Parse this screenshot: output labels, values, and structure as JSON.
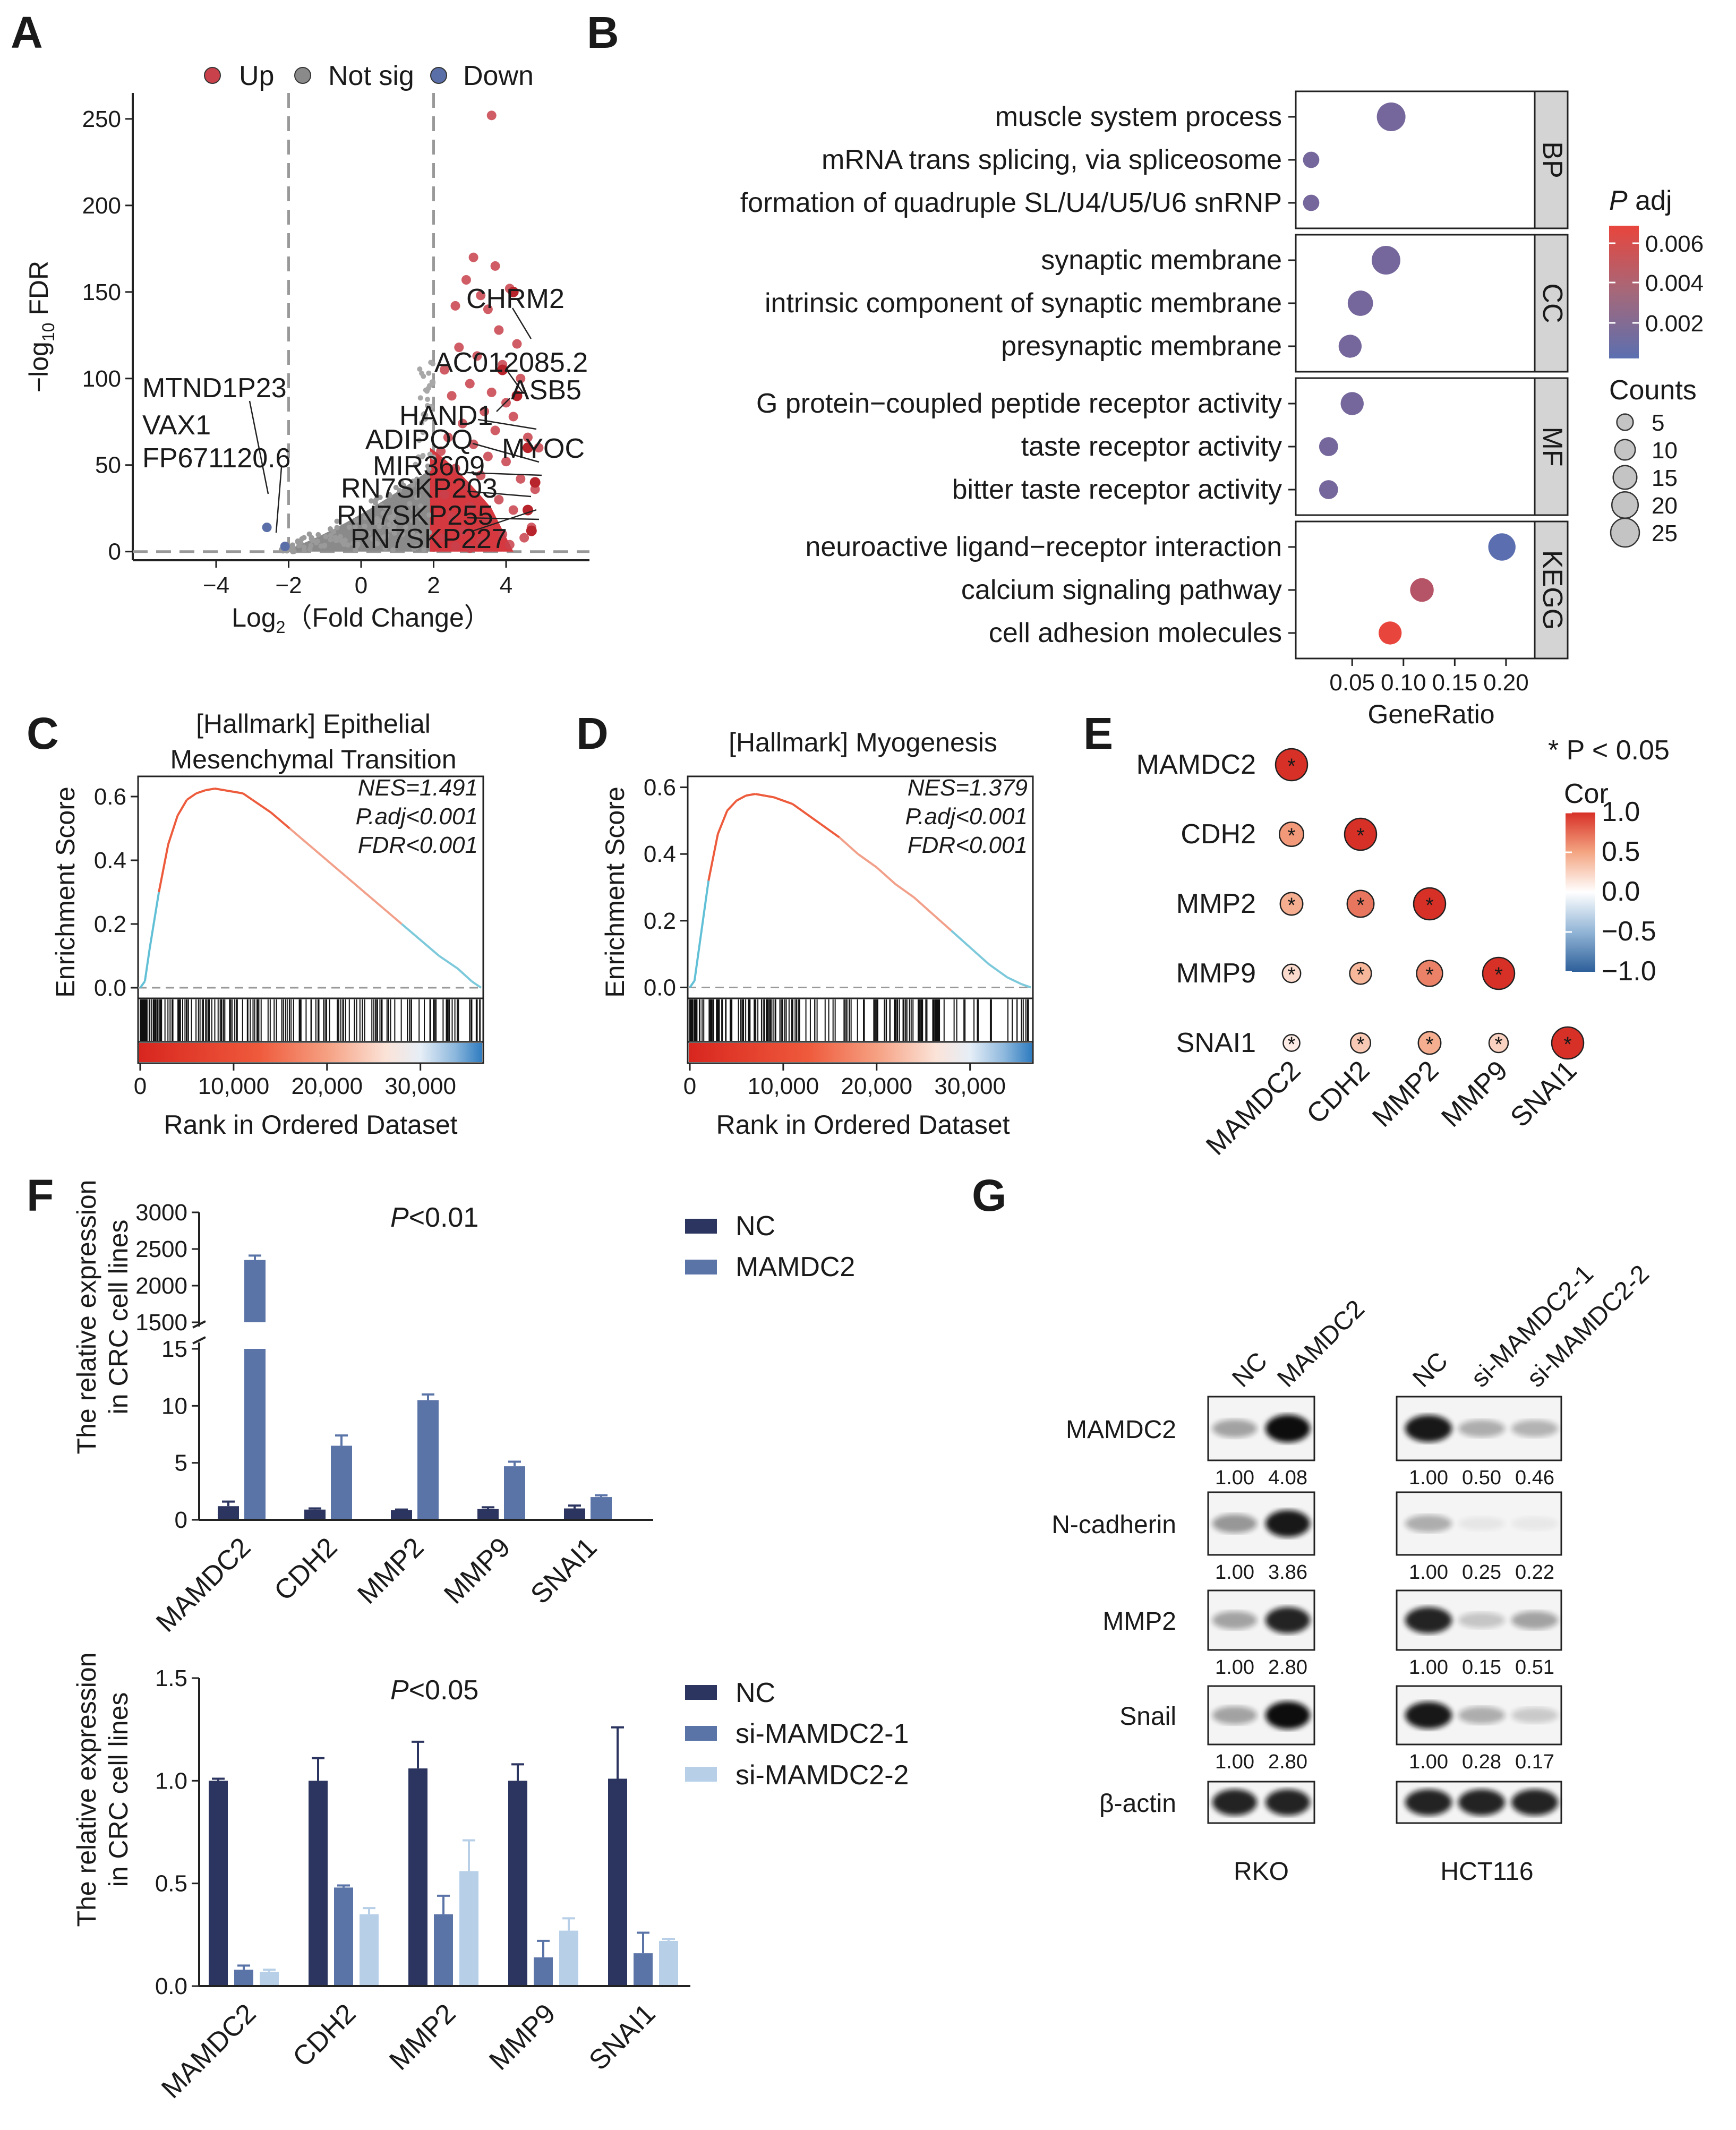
{
  "colors": {
    "up": "#c8414b",
    "notsig": "#8a8a8a",
    "down": "#5a6fa8",
    "nc_dark": "#2c3560",
    "mid_blue": "#5b74a8",
    "light_blue": "#b8cfe8"
  },
  "panel_labels": {
    "a": "A",
    "b": "B",
    "c": "C",
    "d": "D",
    "e": "E",
    "f": "F",
    "g": "G"
  },
  "chart_data": [
    {
      "panel": "A",
      "type": "scatter",
      "legend": {
        "up": "Up",
        "notsig": "Not sig",
        "down": "Down"
      },
      "xlabel": "Log",
      "xlabel_sub": "2",
      "xlabel_suffix": "（Fold Change）",
      "ylabel_prefix": "−log",
      "ylabel_sub": "10",
      "ylabel_suffix": " FDR",
      "xlim": [
        -6.3,
        6.3
      ],
      "ylim": [
        -5,
        265
      ],
      "x_ticks": [
        -4,
        -2,
        0,
        2,
        4
      ],
      "x_tick_labels": [
        "−4",
        "−2",
        "0",
        "2",
        "4"
      ],
      "y_ticks": [
        0,
        50,
        100,
        150,
        200,
        250
      ],
      "y_tick_labels": [
        "0",
        "50",
        "100",
        "150",
        "200",
        "250"
      ],
      "thresholds": {
        "fc": [
          -2,
          2
        ],
        "fdr": 0
      },
      "up_points": [
        [
          3.6,
          252
        ],
        [
          3.1,
          170
        ],
        [
          3.7,
          165
        ],
        [
          2.9,
          157
        ],
        [
          3.3,
          148
        ],
        [
          4.1,
          152
        ],
        [
          2.6,
          142
        ],
        [
          3.5,
          140
        ],
        [
          3.8,
          128
        ],
        [
          4.3,
          120
        ],
        [
          2.7,
          118
        ],
        [
          3.2,
          113
        ],
        [
          3.9,
          108
        ],
        [
          4.4,
          100
        ],
        [
          2.3,
          105
        ],
        [
          3.0,
          97
        ],
        [
          3.6,
          92
        ],
        [
          4.0,
          86
        ],
        [
          2.5,
          90
        ],
        [
          3.4,
          81
        ],
        [
          4.2,
          78
        ],
        [
          2.8,
          74
        ],
        [
          3.7,
          70
        ],
        [
          4.6,
          66
        ],
        [
          2.4,
          66
        ],
        [
          3.1,
          62
        ],
        [
          4.9,
          60
        ],
        [
          2.2,
          58
        ],
        [
          3.5,
          55
        ],
        [
          4.0,
          52
        ],
        [
          2.6,
          48
        ],
        [
          3.3,
          44
        ],
        [
          4.4,
          42
        ],
        [
          2.9,
          38
        ],
        [
          4.8,
          36
        ],
        [
          2.3,
          33
        ],
        [
          3.8,
          30
        ],
        [
          3.0,
          26
        ],
        [
          4.2,
          24
        ],
        [
          2.5,
          20
        ],
        [
          3.5,
          18
        ],
        [
          4.7,
          14
        ],
        [
          2.8,
          12
        ],
        [
          3.9,
          10
        ],
        [
          2.2,
          8
        ],
        [
          3.3,
          6
        ],
        [
          4.1,
          4
        ],
        [
          2.6,
          3
        ],
        [
          3.0,
          2
        ],
        [
          4.5,
          8
        ]
      ],
      "down_points": [
        [
          -2.6,
          14
        ],
        [
          -2.1,
          3
        ]
      ],
      "labels": [
        "CHRM2",
        "AC012085.2",
        "ASB5",
        "HAND1",
        "MYOC",
        "ADIPOQ",
        "MIR3609",
        "RN7SKP203",
        "RN7SKP255",
        "RN7SKP227",
        "MTND1P23",
        "VAX1",
        "FP671120.6"
      ]
    },
    {
      "panel": "B",
      "type": "scatter",
      "facets": [
        {
          "name": "BP",
          "terms": [
            "muscle system process",
            "mRNA trans splicing, via spliceosome",
            "formation of quadruple SL/U4/U5/U6 snRNP"
          ]
        },
        {
          "name": "CC",
          "terms": [
            "synaptic membrane",
            "intrinsic component of synaptic membrane",
            "presynaptic membrane"
          ]
        },
        {
          "name": "MF",
          "terms": [
            "G protein−coupled peptide receptor activity",
            "taste receptor activity",
            "bitter taste receptor activity"
          ]
        },
        {
          "name": "KEGG",
          "terms": [
            "neuroactive ligand−receptor interaction",
            "calcium signaling pathway",
            "cell adhesion molecules"
          ]
        }
      ],
      "gene_ratio": [
        [
          0.088,
          0.01,
          0.01
        ],
        [
          0.083,
          0.058,
          0.048
        ],
        [
          0.05,
          0.027,
          0.027
        ],
        [
          0.196,
          0.118,
          0.087
        ]
      ],
      "padj": [
        [
          0.002,
          0.002,
          0.002
        ],
        [
          0.002,
          0.002,
          0.002
        ],
        [
          0.002,
          0.002,
          0.002
        ],
        [
          0.001,
          0.0045,
          0.0065
        ]
      ],
      "counts": [
        [
          25,
          5,
          5
        ],
        [
          25,
          18,
          14
        ],
        [
          14,
          8,
          8
        ],
        [
          22,
          15,
          14
        ]
      ],
      "xlim": [
        -0.005,
        0.228
      ],
      "x_ticks": [
        0.05,
        0.1,
        0.15,
        0.2
      ],
      "x_tick_labels": [
        "0.05",
        "0.10",
        "0.15",
        "0.20"
      ],
      "xlabel": "GeneRatio",
      "padj_title_italic": "P",
      "padj_title_rest": " adj",
      "padj_ticks": [
        "0.006",
        "0.004",
        "0.002"
      ],
      "counts_title": "Counts",
      "counts_values": [
        5,
        10,
        15,
        20,
        25
      ],
      "counts_labels": [
        "5",
        "10",
        "15",
        "20",
        "25"
      ]
    },
    {
      "panel": "C",
      "type": "line",
      "title_line1": "[Hallmark] Epithelial",
      "title_line2": "Mesenchymal Transition",
      "stats": [
        "NES=1.491",
        "P.adj<0.001",
        "FDR<0.001"
      ],
      "ylabel": "Enrichment Score",
      "xlabel": "Rank in Ordered Dataset",
      "x": [
        0,
        500,
        1000,
        2000,
        3000,
        4000,
        5000,
        6000,
        7000,
        8000,
        9000,
        10000,
        11000,
        12000,
        14000,
        16000,
        18000,
        20000,
        22000,
        24000,
        26000,
        28000,
        30000,
        32000,
        34000,
        35500,
        36500
      ],
      "y": [
        0,
        0.02,
        0.12,
        0.3,
        0.45,
        0.54,
        0.59,
        0.61,
        0.62,
        0.625,
        0.62,
        0.615,
        0.61,
        0.59,
        0.55,
        0.5,
        0.45,
        0.4,
        0.35,
        0.3,
        0.25,
        0.2,
        0.15,
        0.1,
        0.06,
        0.02,
        0
      ],
      "xlim": [
        0,
        36500
      ],
      "ylim": [
        -0.02,
        0.65
      ],
      "y_ticks": [
        0,
        0.2,
        0.4,
        0.6
      ],
      "y_tick_labels": [
        "0.0",
        "0.2",
        "0.4",
        "0.6"
      ],
      "x_ticks": [
        0,
        10000,
        20000,
        30000
      ],
      "x_tick_labels": [
        "0",
        "10,000",
        "20,000",
        "30,000"
      ]
    },
    {
      "panel": "D",
      "type": "line",
      "title_line1": "[Hallmark] Myogenesis",
      "stats": [
        "NES=1.379",
        "P.adj<0.001",
        "FDR<0.001"
      ],
      "ylabel": "Enrichment Score",
      "xlabel": "Rank in Ordered Dataset",
      "x": [
        0,
        500,
        1000,
        2000,
        3000,
        4000,
        5000,
        6000,
        7000,
        8000,
        9000,
        10000,
        11000,
        12000,
        14000,
        16000,
        18000,
        20000,
        22000,
        24000,
        26000,
        28000,
        30000,
        32000,
        34000,
        35500,
        36500
      ],
      "y": [
        0,
        0.02,
        0.12,
        0.32,
        0.46,
        0.53,
        0.56,
        0.575,
        0.58,
        0.575,
        0.57,
        0.56,
        0.55,
        0.53,
        0.49,
        0.45,
        0.4,
        0.36,
        0.31,
        0.27,
        0.22,
        0.17,
        0.12,
        0.07,
        0.03,
        0.01,
        0
      ],
      "xlim": [
        0,
        36500
      ],
      "ylim": [
        -0.02,
        0.62
      ],
      "y_ticks": [
        0,
        0.2,
        0.4,
        0.6
      ],
      "y_tick_labels": [
        "0.0",
        "0.2",
        "0.4",
        "0.6"
      ],
      "x_ticks": [
        0,
        10000,
        20000,
        30000
      ],
      "x_tick_labels": [
        "0",
        "10,000",
        "20,000",
        "30,000"
      ]
    },
    {
      "panel": "E",
      "type": "heatmap",
      "genes": [
        "MAMDC2",
        "CDH2",
        "MMP2",
        "MMP9",
        "SNAI1"
      ],
      "cor": [
        [
          1.0,
          null,
          null,
          null,
          null
        ],
        [
          0.55,
          1.0,
          null,
          null,
          null
        ],
        [
          0.45,
          0.7,
          1.0,
          null,
          null
        ],
        [
          0.2,
          0.4,
          0.65,
          1.0,
          null
        ],
        [
          0.1,
          0.3,
          0.45,
          0.25,
          1.0
        ]
      ],
      "sig_marker": "*",
      "note": "* P < 0.05",
      "legend_title": "Cor",
      "legend_ticks": [
        1.0,
        0.5,
        0.0,
        -0.5,
        -1.0
      ],
      "legend_tick_labels": [
        "1.0",
        "0.5",
        "0.0",
        "−0.5",
        "−1.0"
      ]
    },
    {
      "panel": "F-top",
      "type": "bar",
      "categories": [
        "MAMDC2",
        "CDH2",
        "MMP2",
        "MMP9",
        "SNAI1"
      ],
      "series": [
        {
          "name": "NC",
          "values": [
            1.2,
            0.9,
            0.85,
            0.95,
            1.0
          ],
          "errors": [
            0.4,
            0.1,
            0.05,
            0.15,
            0.25
          ]
        },
        {
          "name": "MAMDC2",
          "values": [
            2350,
            6.5,
            10.5,
            4.7,
            2.0
          ],
          "errors": [
            60,
            0.9,
            0.5,
            0.4,
            0.15
          ]
        }
      ],
      "ylabel_line1": "The relative expression",
      "ylabel_line2": "in CRC cell lines",
      "ylim_lower": [
        0,
        15
      ],
      "ylim_upper": [
        1500,
        3000
      ],
      "y_ticks_lower": [
        "0",
        "5",
        "10",
        "15"
      ],
      "y_ticks_upper": [
        "1500",
        "2000",
        "2500",
        "3000"
      ],
      "p_italic": "P",
      "p_rest": "<0.01"
    },
    {
      "panel": "F-bottom",
      "type": "bar",
      "categories": [
        "MAMDC2",
        "CDH2",
        "MMP2",
        "MMP9",
        "SNAI1"
      ],
      "series": [
        {
          "name": "NC",
          "values": [
            1.0,
            1.0,
            1.06,
            1.0,
            1.01
          ],
          "errors": [
            0.01,
            0.11,
            0.13,
            0.08,
            0.25
          ]
        },
        {
          "name": "si-MAMDC2-1",
          "values": [
            0.08,
            0.48,
            0.35,
            0.14,
            0.16
          ],
          "errors": [
            0.02,
            0.01,
            0.09,
            0.08,
            0.1
          ]
        },
        {
          "name": "si-MAMDC2-2",
          "values": [
            0.07,
            0.35,
            0.56,
            0.27,
            0.22
          ],
          "errors": [
            0.01,
            0.03,
            0.15,
            0.06,
            0.01
          ]
        }
      ],
      "ylabel_line1": "The relative expression",
      "ylabel_line2": "in CRC cell lines",
      "ylim": [
        0,
        1.5
      ],
      "y_ticks": [
        "0.0",
        "0.5",
        "1.0",
        "1.5"
      ],
      "p_italic": "P",
      "p_rest": "<0.05"
    }
  ],
  "western": {
    "rko": {
      "cell_line": "RKO",
      "lanes": [
        "NC",
        "MAMDC2"
      ]
    },
    "hct": {
      "cell_line": "HCT116",
      "lanes": [
        "NC",
        "si-MAMDC2-1",
        "si-MAMDC2-2"
      ]
    },
    "proteins": [
      "MAMDC2",
      "N-cadherin",
      "MMP2",
      "Snail",
      "β-actin"
    ],
    "rko_ratios": [
      [
        "1.00",
        "4.08"
      ],
      [
        "1.00",
        "3.86"
      ],
      [
        "1.00",
        "2.80"
      ],
      [
        "1.00",
        "2.80"
      ]
    ],
    "hct_ratios": [
      [
        "1.00",
        "0.50",
        "0.46"
      ],
      [
        "1.00",
        "0.25",
        "0.22"
      ],
      [
        "1.00",
        "0.15",
        "0.51"
      ],
      [
        "1.00",
        "0.28",
        "0.17"
      ]
    ]
  }
}
